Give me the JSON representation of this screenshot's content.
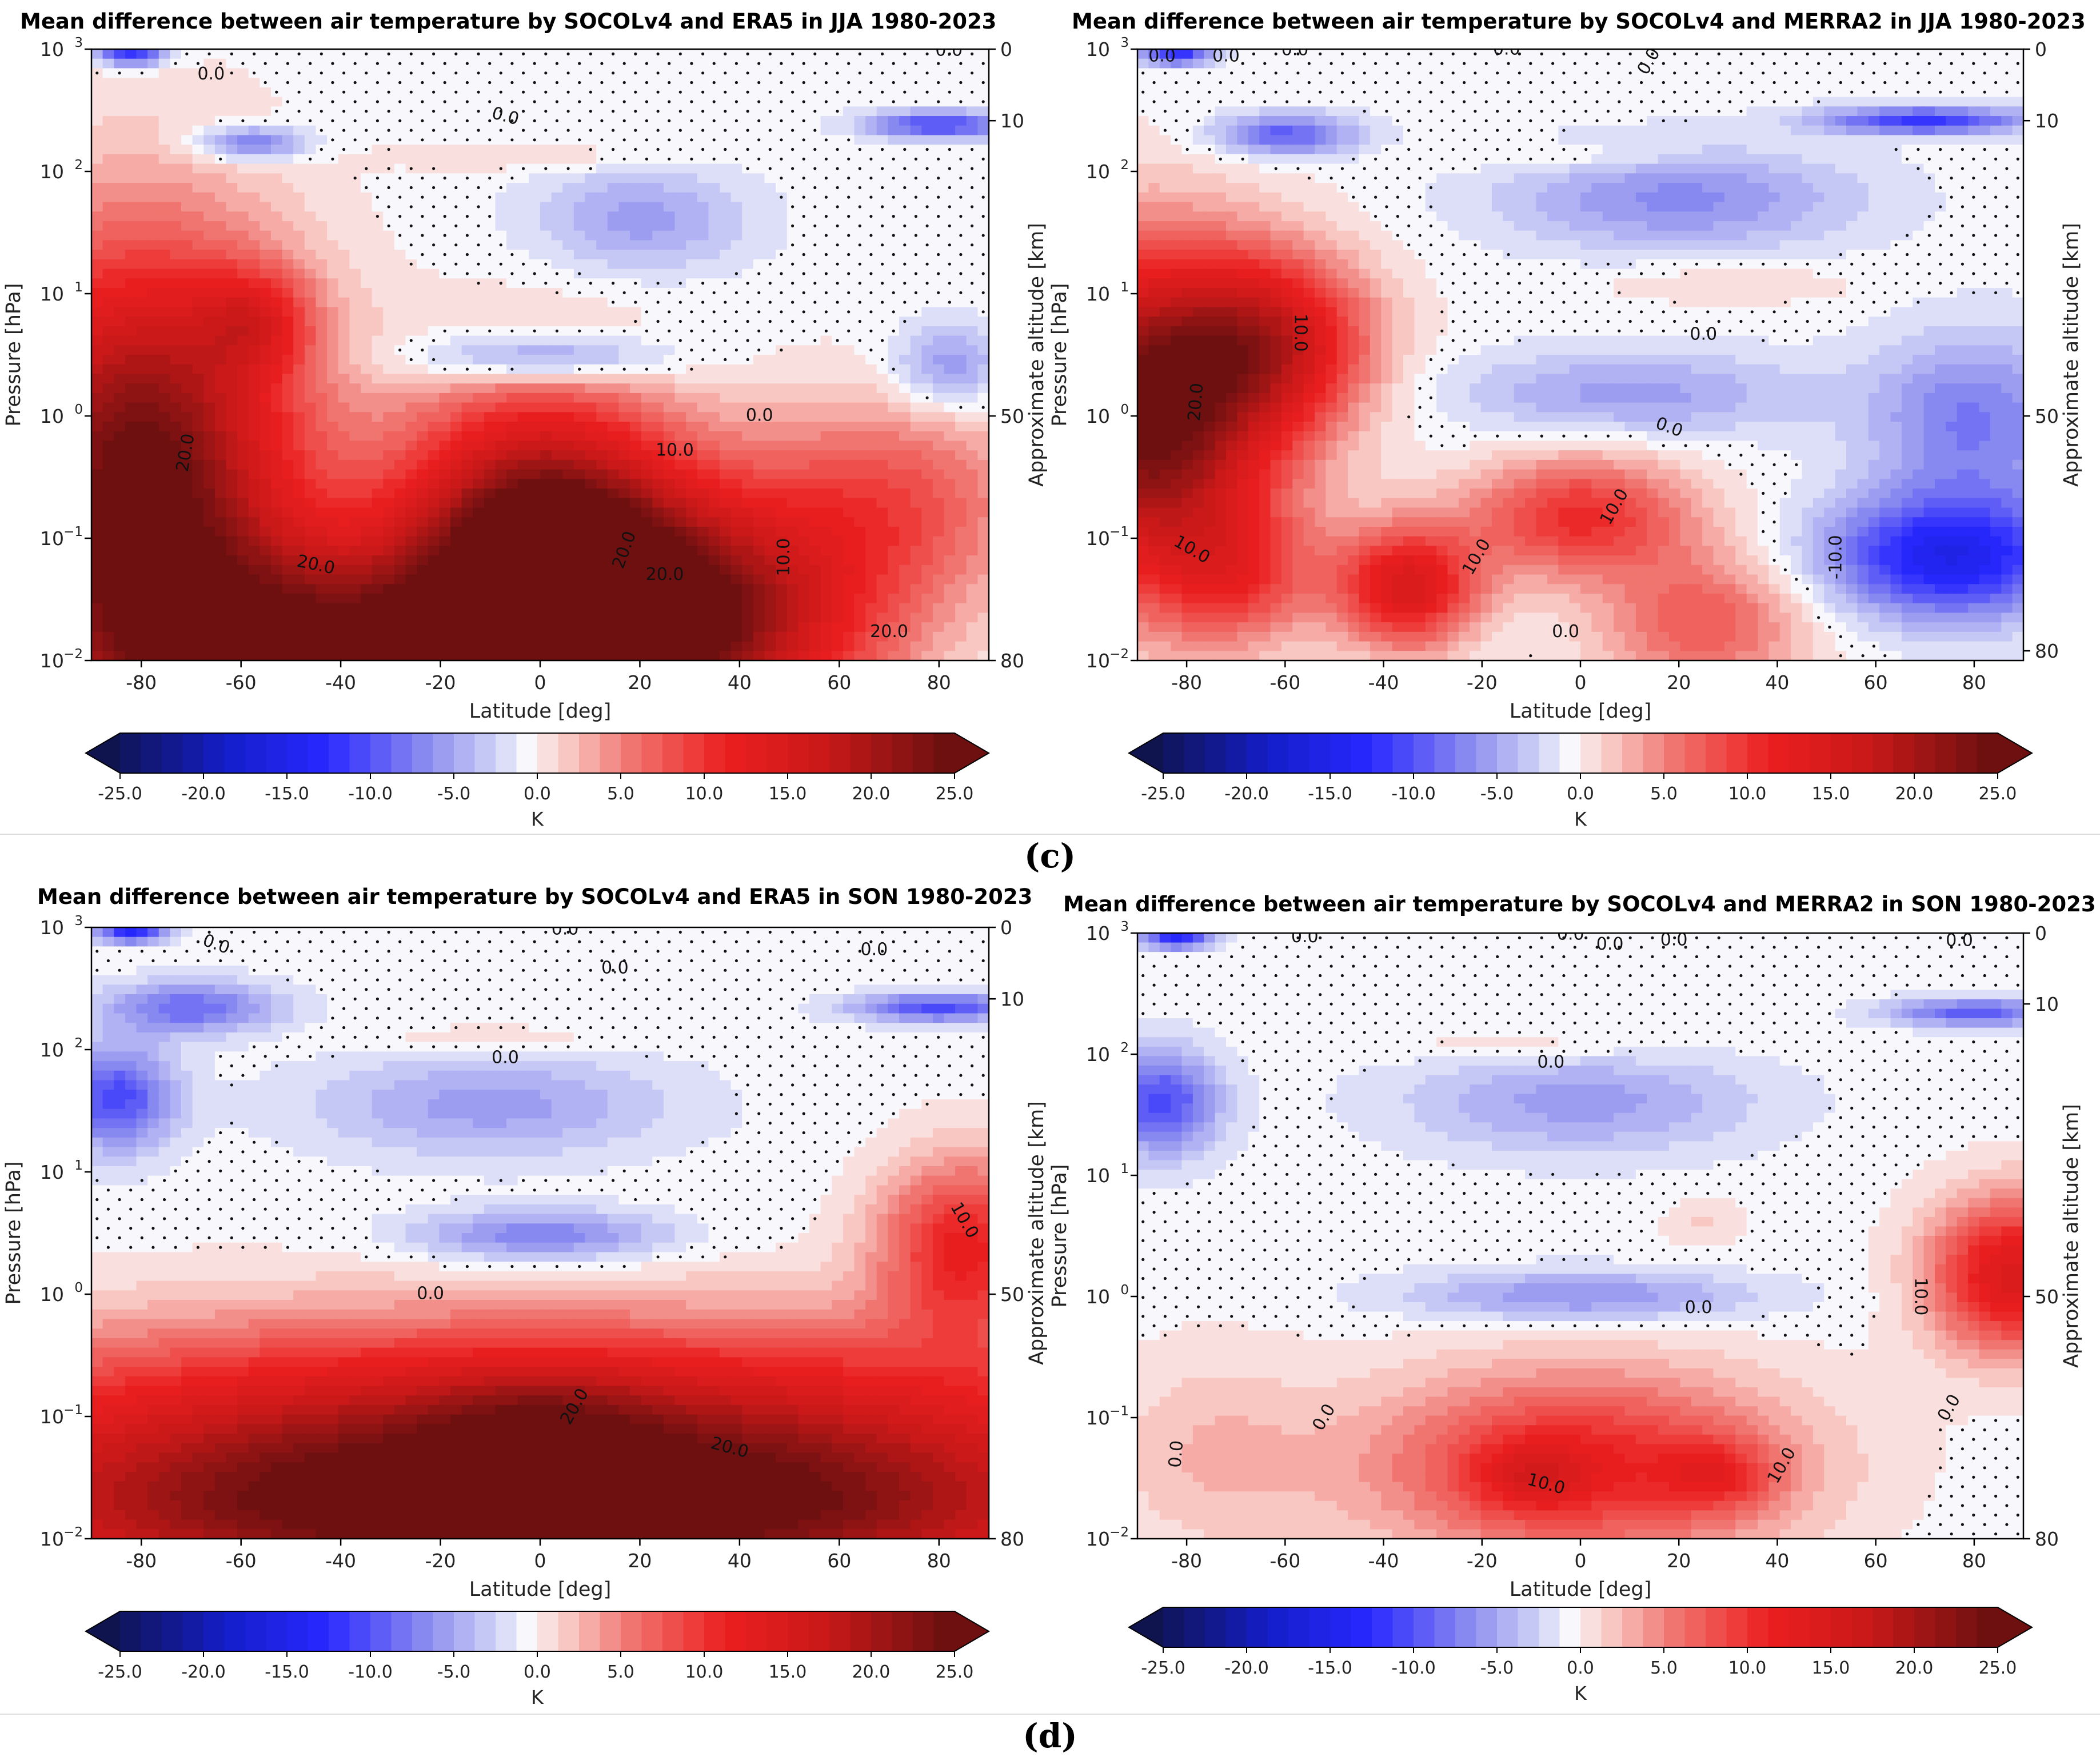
{
  "figure": {
    "panel_labels": [
      "(c)",
      "(d)"
    ]
  },
  "chart_data": [
    {
      "id": "jja-era5",
      "type": "heatmap",
      "title": "Mean difference between air temperature by SOCOLv4 and ERA5 in JJA 1980-2023",
      "xlabel": "Latitude [deg]",
      "ylabel": "Pressure [hPa]",
      "y2label": "Approximate altitude [km]",
      "xlim": [
        -90,
        90
      ],
      "ylim_hPa": [
        1000,
        0.01
      ],
      "x_ticks": [
        -80,
        -60,
        -40,
        -20,
        0,
        20,
        40,
        60,
        80
      ],
      "y_ticks": [
        {
          "exp": -2,
          "p": 0.01
        },
        {
          "exp": -1,
          "p": 0.1
        },
        {
          "exp": 0,
          "p": 1
        },
        {
          "exp": 1,
          "p": 10
        },
        {
          "exp": 2,
          "p": 100
        },
        {
          "exp": 3,
          "p": 1000
        }
      ],
      "y2_ticks": [
        {
          "label": "80",
          "p": 0.01
        },
        {
          "label": "50",
          "p": 1
        },
        {
          "label": "10",
          "p": 260
        },
        {
          "label": "0",
          "p": 1000
        }
      ],
      "colorbar": {
        "label": "K",
        "ticks": [
          "-25.0",
          "-20.0",
          "-15.0",
          "-10.0",
          "-5.0",
          "0.0",
          "5.0",
          "10.0",
          "15.0",
          "20.0",
          "25.0"
        ]
      },
      "features": [
        {
          "lat": -80,
          "p": 0.3,
          "value": 26,
          "sx": 22,
          "sl": 1.3
        },
        {
          "lat": 0,
          "p": 0.1,
          "value": 25,
          "sx": 20,
          "sl": 0.8
        },
        {
          "lat": 30,
          "p": 0.02,
          "value": 22,
          "sx": 25,
          "sl": 0.7
        },
        {
          "lat": -40,
          "p": 0.012,
          "value": 22,
          "sx": 35,
          "sl": 0.6
        },
        {
          "lat": 70,
          "p": 0.2,
          "value": 8,
          "sx": 20,
          "sl": 0.6
        },
        {
          "lat": -57,
          "p": 6,
          "value": 8,
          "sx": 8,
          "sl": 0.3
        },
        {
          "lat": 0,
          "p": 3,
          "value": -8,
          "sx": 18,
          "sl": 0.15
        },
        {
          "lat": 82,
          "p": 2.5,
          "value": -6,
          "sx": 8,
          "sl": 0.25
        },
        {
          "lat": 20,
          "p": 40,
          "value": -5,
          "sx": 15,
          "sl": 0.3
        },
        {
          "lat": -58,
          "p": 170,
          "value": -8,
          "sx": 8,
          "sl": 0.1
        },
        {
          "lat": 80,
          "p": 240,
          "value": -10,
          "sx": 10,
          "sl": 0.08
        },
        {
          "lat": 0,
          "p": 130,
          "value": 2,
          "sx": 20,
          "sl": 0.08
        },
        {
          "lat": -82,
          "p": 900,
          "value": -12,
          "sx": 5,
          "sl": 0.06
        }
      ],
      "contour_labels": [
        {
          "text": "20.0",
          "lat": -45,
          "p": 0.06,
          "angle": 12
        },
        {
          "text": "20.0",
          "lat": 25,
          "p": 0.05,
          "angle": 0
        },
        {
          "text": "20.0",
          "lat": 70,
          "p": 0.017,
          "angle": 0
        },
        {
          "text": "20.0",
          "lat": -71,
          "p": 0.5,
          "angle": -80
        },
        {
          "text": "20.0",
          "lat": 17,
          "p": 0.08,
          "angle": -70
        },
        {
          "text": "10.0",
          "lat": 49,
          "p": 0.07,
          "angle": -90
        },
        {
          "text": "10.0",
          "lat": 27,
          "p": 0.52,
          "angle": 0
        },
        {
          "text": "0.0",
          "lat": 44,
          "p": 1.0,
          "angle": 0
        },
        {
          "text": "0.0",
          "lat": -7,
          "p": 280,
          "angle": 15
        },
        {
          "text": "0.0",
          "lat": -66,
          "p": 620,
          "angle": 0
        },
        {
          "text": "0.0",
          "lat": 82,
          "p": 970,
          "angle": 0
        }
      ]
    },
    {
      "id": "jja-merra2",
      "type": "heatmap",
      "title": "Mean difference between air temperature by SOCOLv4 and MERRA2 in JJA 1980-2023",
      "xlabel": "Latitude [deg]",
      "ylabel": "Pressure [hPa]",
      "y2label": "Approximate altitude [km]",
      "xlim": [
        -90,
        90
      ],
      "ylim_hPa": [
        1000,
        0.01
      ],
      "x_ticks": [
        -80,
        -60,
        -40,
        -20,
        0,
        20,
        40,
        60,
        80
      ],
      "y_ticks": [
        {
          "exp": -2,
          "p": 0.01
        },
        {
          "exp": -1,
          "p": 0.1
        },
        {
          "exp": 0,
          "p": 1
        },
        {
          "exp": 1,
          "p": 10
        },
        {
          "exp": 2,
          "p": 100
        },
        {
          "exp": 3,
          "p": 1000
        }
      ],
      "y2_ticks": [
        {
          "label": "80",
          "p": 0.012
        },
        {
          "label": "50",
          "p": 1
        },
        {
          "label": "10",
          "p": 260
        },
        {
          "label": "0",
          "p": 1000
        }
      ],
      "colorbar": {
        "label": "K",
        "ticks": [
          "-25.0",
          "-20.0",
          "-15.0",
          "-10.0",
          "-5.0",
          "0.0",
          "5.0",
          "10.0",
          "15.0",
          "20.0",
          "25.0"
        ]
      },
      "features": [
        {
          "lat": -88,
          "p": 1.0,
          "value": 26,
          "sx": 18,
          "sl": 0.9
        },
        {
          "lat": -62,
          "p": 4,
          "value": 14,
          "sx": 14,
          "sl": 0.5
        },
        {
          "lat": -35,
          "p": 0.04,
          "value": 15,
          "sx": 10,
          "sl": 0.35
        },
        {
          "lat": 0,
          "p": 0.15,
          "value": 11,
          "sx": 16,
          "sl": 0.35
        },
        {
          "lat": 25,
          "p": 0.02,
          "value": 8,
          "sx": 15,
          "sl": 0.4
        },
        {
          "lat": -70,
          "p": 0.05,
          "value": 8,
          "sx": 12,
          "sl": 0.4
        },
        {
          "lat": 75,
          "p": 0.07,
          "value": -14,
          "sx": 18,
          "sl": 0.35
        },
        {
          "lat": 80,
          "p": 0.9,
          "value": -7,
          "sx": 15,
          "sl": 0.5
        },
        {
          "lat": 10,
          "p": 1.5,
          "value": -5,
          "sx": 25,
          "sl": 0.25
        },
        {
          "lat": 20,
          "p": 60,
          "value": -6,
          "sx": 25,
          "sl": 0.3
        },
        {
          "lat": -60,
          "p": 200,
          "value": -9,
          "sx": 10,
          "sl": 0.12
        },
        {
          "lat": 70,
          "p": 260,
          "value": -11,
          "sx": 15,
          "sl": 0.08
        },
        {
          "lat": 30,
          "p": 12,
          "value": 2,
          "sx": 20,
          "sl": 0.12
        },
        {
          "lat": 0,
          "p": 130,
          "value": 2,
          "sx": 18,
          "sl": 0.08
        },
        {
          "lat": -82,
          "p": 900,
          "value": -12,
          "sx": 5,
          "sl": 0.06
        }
      ],
      "contour_labels": [
        {
          "text": "0.0",
          "lat": -3,
          "p": 0.017,
          "angle": 0
        },
        {
          "text": "10.0",
          "lat": -79,
          "p": 0.08,
          "angle": 30
        },
        {
          "text": "10.0",
          "lat": -21,
          "p": 0.07,
          "angle": -60
        },
        {
          "text": "10.0",
          "lat": 7,
          "p": 0.18,
          "angle": -60
        },
        {
          "text": "-10.0",
          "lat": 52,
          "p": 0.07,
          "angle": -90
        },
        {
          "text": "0.0",
          "lat": 18,
          "p": 0.8,
          "angle": 20
        },
        {
          "text": "20.0",
          "lat": -78,
          "p": 1.3,
          "angle": -85
        },
        {
          "text": "10.0",
          "lat": -57,
          "p": 4.8,
          "angle": 90
        },
        {
          "text": "0.0",
          "lat": 25,
          "p": 4.6,
          "angle": 0
        },
        {
          "text": "0.0",
          "lat": -85,
          "p": 870,
          "angle": 0
        },
        {
          "text": "0.0",
          "lat": -72,
          "p": 870,
          "angle": 0
        },
        {
          "text": "0.0",
          "lat": -58,
          "p": 980,
          "angle": 0
        },
        {
          "text": "0.0",
          "lat": 14,
          "p": 790,
          "angle": -60
        },
        {
          "text": "0.0",
          "lat": -15,
          "p": 990,
          "angle": 0
        }
      ]
    },
    {
      "id": "son-era5",
      "type": "heatmap",
      "title": "Mean difference between air temperature by SOCOLv4 and ERA5 in SON 1980-2023",
      "xlabel": "Latitude [deg]",
      "ylabel": "Pressure [hPa]",
      "y2label": "Approximate altitude [km]",
      "xlim": [
        -90,
        90
      ],
      "ylim_hPa": [
        1000,
        0.01
      ],
      "x_ticks": [
        -80,
        -60,
        -40,
        -20,
        0,
        20,
        40,
        60,
        80
      ],
      "y_ticks": [
        {
          "exp": -2,
          "p": 0.01
        },
        {
          "exp": -1,
          "p": 0.1
        },
        {
          "exp": 0,
          "p": 1
        },
        {
          "exp": 1,
          "p": 10
        },
        {
          "exp": 2,
          "p": 100
        },
        {
          "exp": 3,
          "p": 1000
        }
      ],
      "y2_ticks": [
        {
          "label": "80",
          "p": 0.01
        },
        {
          "label": "50",
          "p": 1
        },
        {
          "label": "10",
          "p": 260
        },
        {
          "label": "0",
          "p": 1000
        }
      ],
      "colorbar": {
        "label": "K",
        "ticks": [
          "-25.0",
          "-20.0",
          "-15.0",
          "-10.0",
          "-5.0",
          "0.0",
          "5.0",
          "10.0",
          "15.0",
          "20.0",
          "25.0"
        ]
      },
      "features": [
        {
          "lat": 0,
          "p": 0.015,
          "value": 26,
          "sx": 90,
          "sl": 0.55
        },
        {
          "lat": 0,
          "p": 0.12,
          "value": 14,
          "sx": 90,
          "sl": 0.55
        },
        {
          "lat": 0,
          "p": 0.1,
          "value": 4,
          "sx": 15,
          "sl": 0.3
        },
        {
          "lat": 85,
          "p": 2.5,
          "value": 12,
          "sx": 12,
          "sl": 0.5
        },
        {
          "lat": 0,
          "p": 3,
          "value": -7,
          "sx": 18,
          "sl": 0.15
        },
        {
          "lat": -10,
          "p": 35,
          "value": -5,
          "sx": 25,
          "sl": 0.3
        },
        {
          "lat": -85,
          "p": 40,
          "value": -10,
          "sx": 8,
          "sl": 0.3
        },
        {
          "lat": -70,
          "p": 220,
          "value": -8,
          "sx": 12,
          "sl": 0.15
        },
        {
          "lat": 80,
          "p": 220,
          "value": -10,
          "sx": 12,
          "sl": 0.08
        },
        {
          "lat": -10,
          "p": 120,
          "value": 2,
          "sx": 20,
          "sl": 0.1
        },
        {
          "lat": -82,
          "p": 900,
          "value": -12,
          "sx": 5,
          "sl": 0.06
        }
      ],
      "contour_labels": [
        {
          "text": "20.0",
          "lat": 38,
          "p": 0.055,
          "angle": 15
        },
        {
          "text": "20.0",
          "lat": 7,
          "p": 0.12,
          "angle": -60
        },
        {
          "text": "0.0",
          "lat": -22,
          "p": 1.0,
          "angle": 0
        },
        {
          "text": "10.0",
          "lat": 85,
          "p": 4,
          "angle": 60
        },
        {
          "text": "0.0",
          "lat": -7,
          "p": 85,
          "angle": 0
        },
        {
          "text": "0.0",
          "lat": 15,
          "p": 460,
          "angle": 0
        },
        {
          "text": "0.0",
          "lat": -65,
          "p": 720,
          "angle": 20
        },
        {
          "text": "0.0",
          "lat": 67,
          "p": 650,
          "angle": 0
        },
        {
          "text": "0.0",
          "lat": 5,
          "p": 960,
          "angle": 0
        }
      ]
    },
    {
      "id": "son-merra2",
      "type": "heatmap",
      "title": "Mean difference between air temperature by SOCOLv4 and MERRA2 in SON 1980-2023",
      "xlabel": "Latitude [deg]",
      "ylabel": "Pressure [hPa]",
      "y2label": "Approximate altitude [km]",
      "xlim": [
        -90,
        90
      ],
      "ylim_hPa": [
        1000,
        0.01
      ],
      "x_ticks": [
        -80,
        -60,
        -40,
        -20,
        0,
        20,
        40,
        60,
        80
      ],
      "y_ticks": [
        {
          "exp": -2,
          "p": 0.01
        },
        {
          "exp": -1,
          "p": 0.1
        },
        {
          "exp": 0,
          "p": 1
        },
        {
          "exp": 1,
          "p": 10
        },
        {
          "exp": 2,
          "p": 100
        },
        {
          "exp": 3,
          "p": 1000
        }
      ],
      "y2_ticks": [
        {
          "label": "80",
          "p": 0.01
        },
        {
          "label": "50",
          "p": 1
        },
        {
          "label": "10",
          "p": 260
        },
        {
          "label": "0",
          "p": 1000
        }
      ],
      "colorbar": {
        "label": "K",
        "ticks": [
          "-25.0",
          "-20.0",
          "-15.0",
          "-10.0",
          "-5.0",
          "0.0",
          "5.0",
          "10.0",
          "15.0",
          "20.0",
          "25.0"
        ]
      },
      "features": [
        {
          "lat": 0,
          "p": 0.04,
          "value": 12,
          "sx": 30,
          "sl": 0.55
        },
        {
          "lat": 28,
          "p": 0.033,
          "value": 6,
          "sx": 8,
          "sl": 0.2
        },
        {
          "lat": -10,
          "p": 0.033,
          "value": 5,
          "sx": 8,
          "sl": 0.2
        },
        {
          "lat": -75,
          "p": 0.05,
          "value": 3,
          "sx": 15,
          "sl": 0.6
        },
        {
          "lat": 88,
          "p": 1.5,
          "value": 15,
          "sx": 12,
          "sl": 0.45
        },
        {
          "lat": 0,
          "p": 1.0,
          "value": -6,
          "sx": 25,
          "sl": 0.15
        },
        {
          "lat": 0,
          "p": 40,
          "value": -5,
          "sx": 25,
          "sl": 0.3
        },
        {
          "lat": -85,
          "p": 40,
          "value": -10,
          "sx": 8,
          "sl": 0.3
        },
        {
          "lat": 80,
          "p": 220,
          "value": -9,
          "sx": 12,
          "sl": 0.08
        },
        {
          "lat": -10,
          "p": 120,
          "value": 2,
          "sx": 20,
          "sl": 0.1
        },
        {
          "lat": 25,
          "p": 4,
          "value": 2,
          "sx": 6,
          "sl": 0.15
        },
        {
          "lat": -82,
          "p": 900,
          "value": -12,
          "sx": 5,
          "sl": 0.06
        }
      ],
      "contour_labels": [
        {
          "text": "10.0",
          "lat": -7,
          "p": 0.028,
          "angle": 15
        },
        {
          "text": "10.0",
          "lat": 41,
          "p": 0.04,
          "angle": -60
        },
        {
          "text": "0.0",
          "lat": -82,
          "p": 0.05,
          "angle": -85
        },
        {
          "text": "0.0",
          "lat": -52,
          "p": 0.1,
          "angle": -60
        },
        {
          "text": "0.0",
          "lat": 75,
          "p": 0.12,
          "angle": -60
        },
        {
          "text": "0.0",
          "lat": 24,
          "p": 0.8,
          "angle": 0
        },
        {
          "text": "10.0",
          "lat": 69,
          "p": 1.0,
          "angle": 90
        },
        {
          "text": "0.0",
          "lat": -6,
          "p": 85,
          "angle": 0
        },
        {
          "text": "0.0",
          "lat": 6,
          "p": 800,
          "angle": 0
        },
        {
          "text": "0.0",
          "lat": 19,
          "p": 870,
          "angle": 0
        },
        {
          "text": "0.0",
          "lat": -56,
          "p": 920,
          "angle": 0
        },
        {
          "text": "0.0",
          "lat": -2,
          "p": 970,
          "angle": 0
        },
        {
          "text": "0.0",
          "lat": 77,
          "p": 860,
          "angle": 0
        }
      ]
    }
  ]
}
